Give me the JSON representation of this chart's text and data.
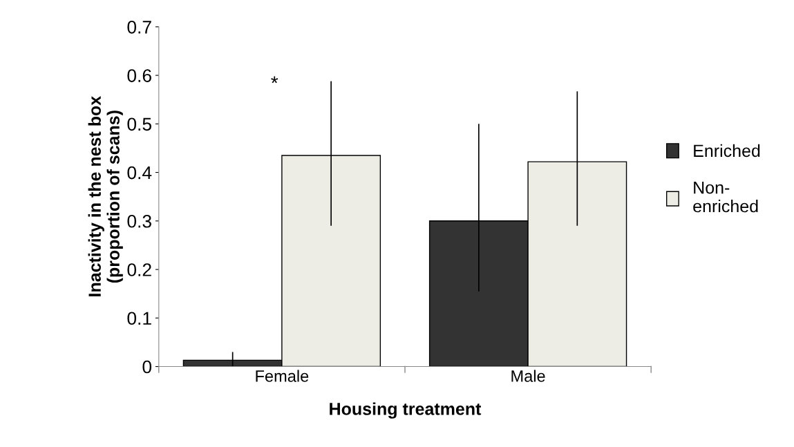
{
  "chart_data": {
    "type": "bar",
    "xlabel": "Housing treatment",
    "ylabel": "Inactivity in the nest box\n(proportion of scans)",
    "categories": [
      "Female",
      "Male"
    ],
    "series": [
      {
        "name": "Enriched",
        "color": "#333333",
        "values": [
          0.013,
          0.3
        ],
        "errors": [
          [
            0.0,
            0.03
          ],
          [
            0.155,
            0.5
          ]
        ]
      },
      {
        "name": "Non-\nenriched",
        "color": "#ededE6",
        "values": [
          0.435,
          0.422
        ],
        "errors": [
          [
            0.29,
            0.588
          ],
          [
            0.29,
            0.567
          ]
        ]
      }
    ],
    "ylim": [
      0,
      0.7
    ],
    "yticks": [
      0,
      0.1,
      0.2,
      0.3,
      0.4,
      0.5,
      0.6,
      0.7
    ],
    "annotations": [
      "*"
    ],
    "grid": false,
    "legend": "right"
  }
}
